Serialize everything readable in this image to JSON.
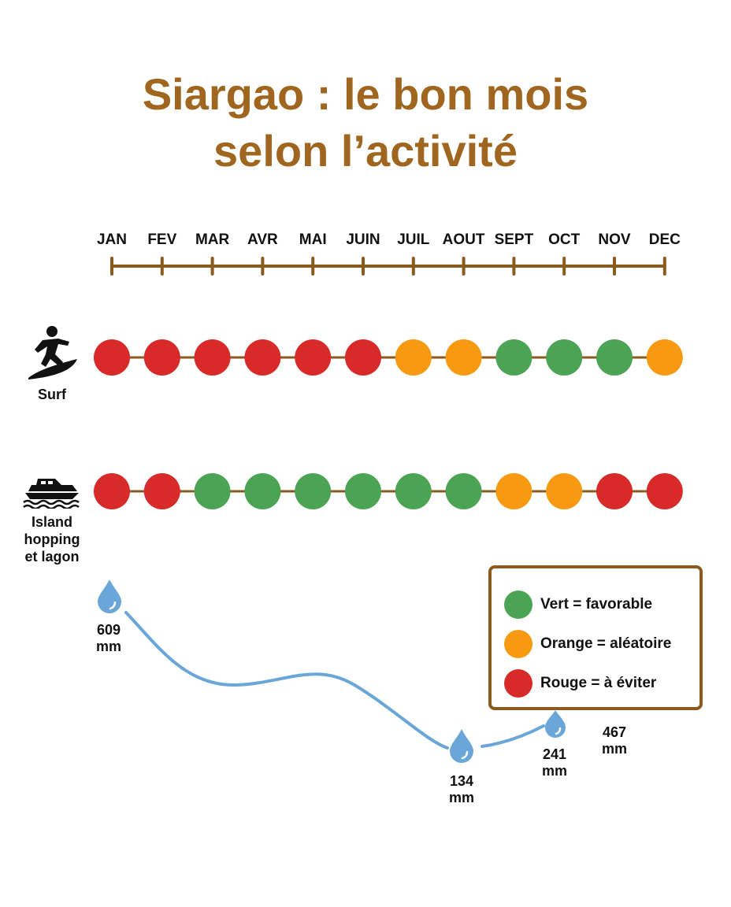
{
  "title": {
    "line1": "Siargao : le bon mois",
    "line2": "selon l’activité"
  },
  "months": [
    "JAN",
    "FEV",
    "MAR",
    "AVR",
    "MAI",
    "JUIN",
    "JUIL",
    "AOUT",
    "SEPT",
    "OCT",
    "NOV",
    "DEC"
  ],
  "colors": {
    "red": "#d92a2a",
    "orange": "#f79a12",
    "green": "#4ba453",
    "timeline": "#8a5a1e",
    "title": "#a0651e",
    "rain": "#6aa6d8"
  },
  "activities": [
    {
      "label": "Surf",
      "icon": "surfer-icon",
      "ratings": [
        "red",
        "red",
        "red",
        "red",
        "red",
        "red",
        "orange",
        "orange",
        "green",
        "green",
        "green",
        "orange"
      ]
    },
    {
      "label": "Island hopping et lagon",
      "label_lines": [
        "Island",
        "hopping",
        "et lagon"
      ],
      "icon": "boat-icon",
      "ratings": [
        "red",
        "red",
        "green",
        "green",
        "green",
        "green",
        "green",
        "green",
        "orange",
        "orange",
        "red",
        "red"
      ]
    }
  ],
  "legend": [
    {
      "color": "green",
      "label": "Vert = favorable"
    },
    {
      "color": "orange",
      "label": "Orange = aléatoire"
    },
    {
      "color": "red",
      "label": "Rouge = à éviter"
    }
  ],
  "rainfall": [
    {
      "month": "JAN",
      "value": "609",
      "unit": "mm"
    },
    {
      "month": "AOUT",
      "value": "134",
      "unit": "mm"
    },
    {
      "month": "OCT",
      "value": "241",
      "unit": "mm"
    },
    {
      "month": "NOV",
      "value": "467",
      "unit": "mm"
    }
  ]
}
